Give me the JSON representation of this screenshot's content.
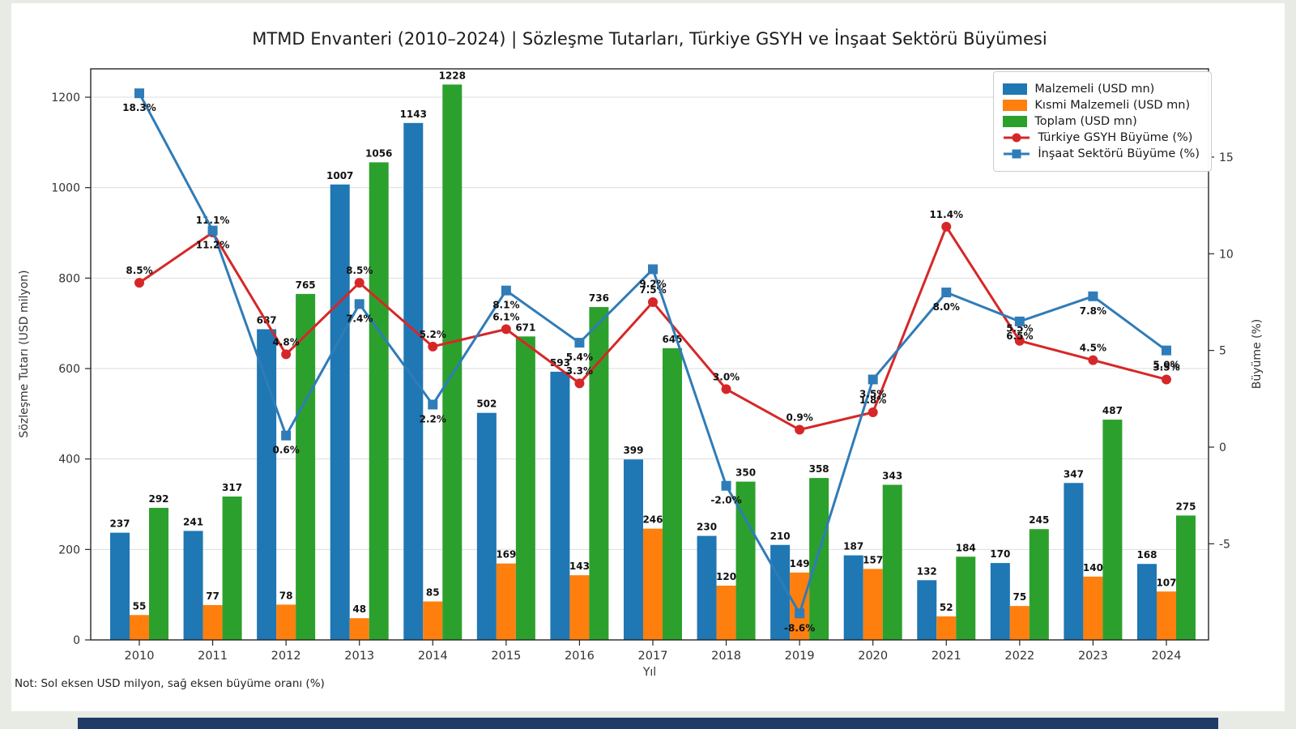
{
  "title": "MTMD Envanteri (2010–2024) | Sözleşme Tutarları, Türkiye GSYH ve İnşaat Sektörü Büyümesi",
  "note": "Not: Sol eksen USD milyon, sağ eksen büyüme oranı (%)",
  "page": {
    "background": "#e8ebe4",
    "figure_background": "#ffffff",
    "footer_bar_color": "#1f3b66",
    "grid_color": "#dddddd",
    "spine_color": "#262626",
    "tick_color": "#333333",
    "label_color": "#111111"
  },
  "chart_data": {
    "type": "bar",
    "subtype": "grouped-bars-with-two-lines",
    "categories": [
      "2010",
      "2011",
      "2012",
      "2013",
      "2014",
      "2015",
      "2016",
      "2017",
      "2018",
      "2019",
      "2020",
      "2021",
      "2022",
      "2023",
      "2024"
    ],
    "xlabel": "Yıl",
    "ylabel_left": "Sözleşme Tutarı (USD milyon)",
    "ylabel_right": "Büyüme (%)",
    "ylim_left": [
      0,
      1263
    ],
    "ylim_right": [
      -10,
      19.6
    ],
    "yticks_left": [
      0,
      200,
      400,
      600,
      800,
      1000,
      1200
    ],
    "yticks_right": [
      -5,
      0,
      5,
      10,
      15
    ],
    "grid": "horizontal",
    "legend_position": "upper right",
    "bar_series": [
      {
        "name": "Malzemeli (USD mn)",
        "color": "#1f77b4",
        "values": [
          237,
          241,
          687,
          1007,
          1143,
          502,
          593,
          399,
          230,
          210,
          187,
          132,
          170,
          347,
          168
        ]
      },
      {
        "name": "Kısmi Malzemeli (USD mn)",
        "color": "#ff7f0e",
        "values": [
          55,
          77,
          78,
          48,
          85,
          169,
          143,
          246,
          120,
          149,
          157,
          52,
          75,
          140,
          107
        ]
      },
      {
        "name": "Toplam (USD mn)",
        "color": "#2ca02c",
        "values": [
          292,
          317,
          765,
          1056,
          1228,
          671,
          736,
          645,
          350,
          358,
          343,
          184,
          245,
          487,
          275
        ]
      }
    ],
    "line_series": [
      {
        "name": "Türkiye GSYH Büyüme (%)",
        "color": "#d62728",
        "marker": "circle",
        "label_side": "above",
        "values": [
          8.5,
          11.1,
          4.8,
          8.5,
          5.2,
          6.1,
          3.3,
          7.5,
          3.0,
          0.9,
          1.8,
          11.4,
          5.5,
          4.5,
          3.5
        ]
      },
      {
        "name": "İnşaat Sektörü Büyüme (%)",
        "color": "#2f7cb8",
        "marker": "square",
        "label_side": "below",
        "values": [
          18.3,
          11.2,
          0.6,
          7.4,
          2.2,
          8.1,
          5.4,
          9.2,
          -2.0,
          -8.6,
          3.5,
          8.0,
          6.5,
          7.8,
          5.0
        ]
      }
    ]
  }
}
